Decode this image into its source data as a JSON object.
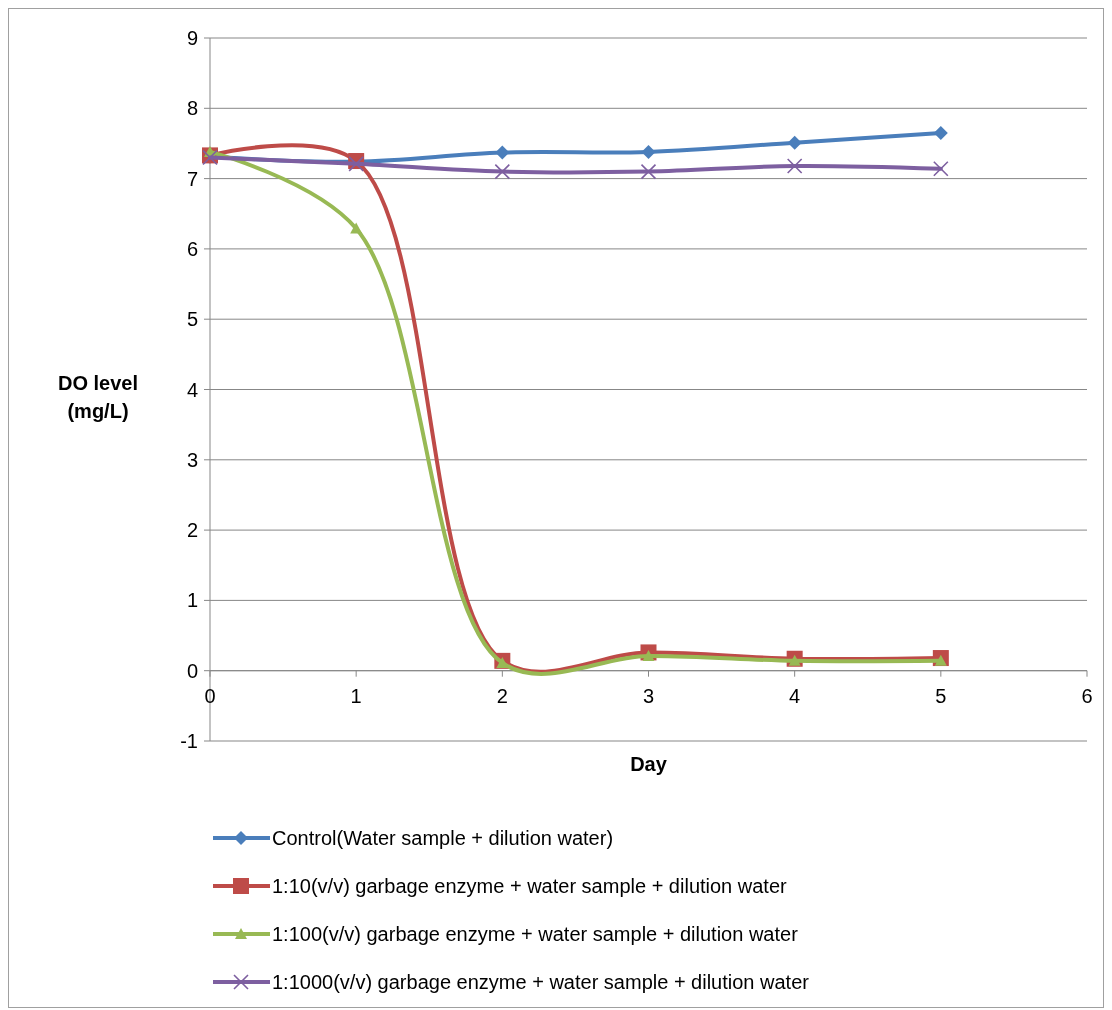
{
  "chart_data": {
    "type": "line",
    "xlabel": "Day",
    "ylabel": "DO level (mg/L)",
    "x": [
      0,
      1,
      2,
      3,
      4,
      5
    ],
    "xlim": [
      0,
      6
    ],
    "xticks": [
      0,
      1,
      2,
      3,
      4,
      5,
      6
    ],
    "ylim": [
      -1,
      9
    ],
    "yticks": [
      -1,
      0,
      1,
      2,
      3,
      4,
      5,
      6,
      7,
      8,
      9
    ],
    "grid": "y",
    "legend": "bottom",
    "line_style": "solid",
    "series": [
      {
        "name": "Control(Water sample + dilution water)",
        "color": "#4a7ebb",
        "marker": "diamond",
        "values": [
          7.31,
          7.24,
          7.37,
          7.38,
          7.51,
          7.65
        ]
      },
      {
        "name": "1:10(v/v) garbage enzyme + water sample + dilution water",
        "color": "#be4b48",
        "marker": "square",
        "values": [
          7.33,
          7.25,
          0.14,
          0.26,
          0.17,
          0.18
        ]
      },
      {
        "name": "1:100(v/v) garbage enzyme + water sample + dilution water",
        "color": "#98b954",
        "marker": "triangle",
        "values": [
          7.38,
          6.29,
          0.11,
          0.21,
          0.14,
          0.14
        ]
      },
      {
        "name": "1:1000(v/v) garbage enzyme + water sample + dilution water",
        "color": "#7d5fa0",
        "marker": "cross",
        "values": [
          7.3,
          7.21,
          7.1,
          7.1,
          7.18,
          7.14
        ]
      }
    ]
  }
}
